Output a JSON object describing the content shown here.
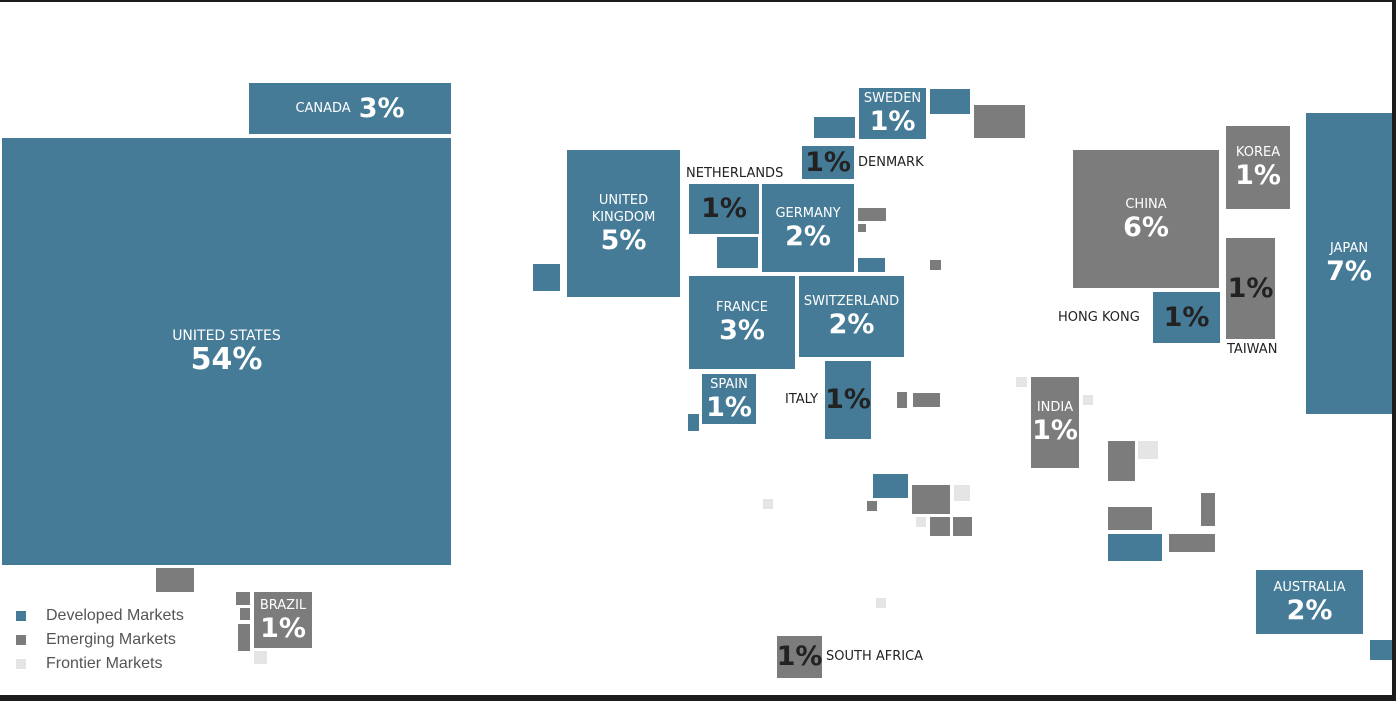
{
  "countries": [
    {
      "name": "UNITED STATES",
      "share": "54%"
    },
    {
      "name": "CANADA",
      "share": "3%"
    },
    {
      "name": "UNITED KINGDOM",
      "share": "5%"
    },
    {
      "name": "NETHERLANDS",
      "share": "1%"
    },
    {
      "name": "GERMANY",
      "share": "2%"
    },
    {
      "name": "SWEDEN",
      "share": "1%"
    },
    {
      "name": "DENMARK",
      "share": "1%"
    },
    {
      "name": "FRANCE",
      "share": "3%"
    },
    {
      "name": "SWITZERLAND",
      "share": "2%"
    },
    {
      "name": "SPAIN",
      "share": "1%"
    },
    {
      "name": "ITALY",
      "share": "1%"
    },
    {
      "name": "CHINA",
      "share": "6%"
    },
    {
      "name": "KOREA",
      "share": "1%"
    },
    {
      "name": "TAIWAN",
      "share": "1%"
    },
    {
      "name": "HONG KONG",
      "share": "1%"
    },
    {
      "name": "JAPAN",
      "share": "7%"
    },
    {
      "name": "INDIA",
      "share": "1%"
    },
    {
      "name": "AUSTRALIA",
      "share": "2%"
    },
    {
      "name": "BRAZIL",
      "share": "1%"
    },
    {
      "name": "SOUTH AFRICA",
      "share": "1%"
    }
  ],
  "legend": [
    {
      "label": "Developed Markets",
      "color": "#457b97"
    },
    {
      "label": "Emerging Markets",
      "color": "#7c7c7c"
    },
    {
      "label": "Frontier Markets",
      "color": "#e5e5e5"
    }
  ]
}
